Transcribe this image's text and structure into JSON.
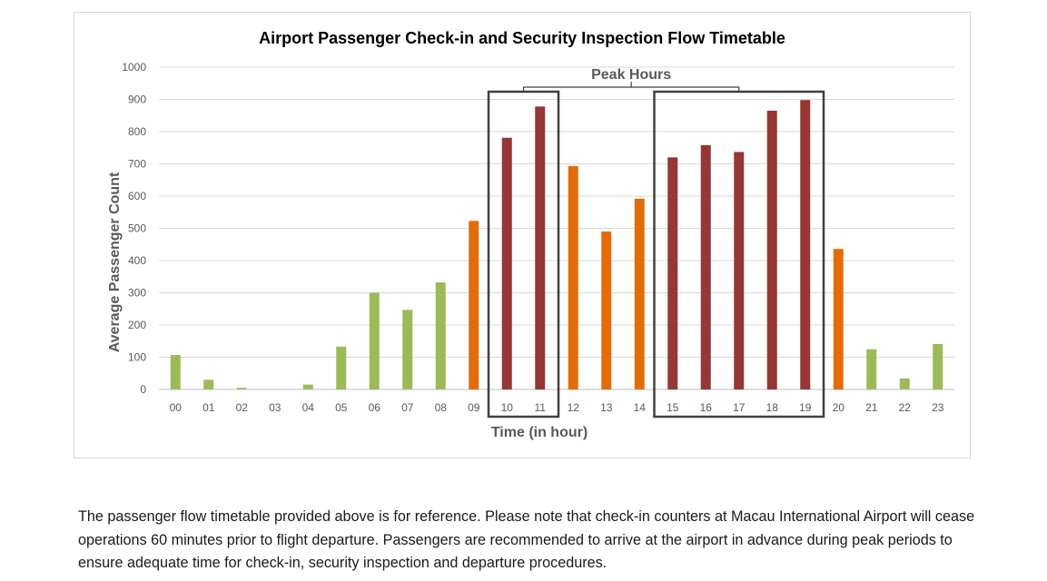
{
  "chart_data": {
    "type": "bar",
    "title": "Airport Passenger Check-in and Security Inspection Flow Timetable",
    "xlabel": "Time (in hour)",
    "ylabel": "Average Passenger Count",
    "ylim": [
      0,
      1000
    ],
    "yticks": [
      0,
      100,
      200,
      300,
      400,
      500,
      600,
      700,
      800,
      900,
      1000
    ],
    "grid": true,
    "categories": [
      "00",
      "01",
      "02",
      "03",
      "04",
      "05",
      "06",
      "07",
      "08",
      "09",
      "10",
      "11",
      "12",
      "13",
      "14",
      "15",
      "16",
      "17",
      "18",
      "19",
      "20",
      "21",
      "22",
      "23"
    ],
    "values": [
      107,
      30,
      5,
      0,
      15,
      133,
      300,
      247,
      332,
      523,
      781,
      878,
      693,
      490,
      592,
      720,
      758,
      737,
      865,
      898,
      436,
      125,
      34,
      141
    ],
    "level_colors": {
      "low": "#9bbb59",
      "medium": "#e36c0a",
      "high": "#953735"
    },
    "levels": [
      "low",
      "low",
      "low",
      "low",
      "low",
      "low",
      "low",
      "low",
      "low",
      "medium",
      "high",
      "high",
      "medium",
      "medium",
      "medium",
      "high",
      "high",
      "high",
      "high",
      "high",
      "medium",
      "low",
      "low",
      "low"
    ],
    "annotation": {
      "label": "Peak Hours",
      "boxes": [
        [
          "10",
          "11"
        ],
        [
          "15",
          "19"
        ]
      ]
    }
  },
  "note": {
    "text": "The passenger flow timetable provided above is for reference. Please note that check-in counters at Macau International Airport will cease operations 60 minutes prior to flight departure. Passengers are recommended to arrive at the airport in advance during peak periods to ensure adequate time for check-in, security inspection and departure procedures."
  }
}
